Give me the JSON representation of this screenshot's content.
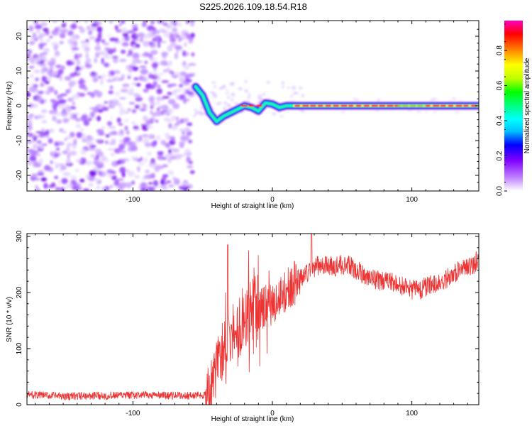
{
  "title": "S225.2026.109.18.54.R18",
  "chart_data": [
    {
      "type": "heatmap",
      "title": "S225.2026.109.18.54.R18",
      "xlabel": "Height of straight line (km)",
      "ylabel": "Frequency (Hz)",
      "xlim": [
        -176,
        148
      ],
      "ylim": [
        -24.5,
        24.5
      ],
      "xticks": [
        -100,
        0,
        100
      ],
      "xtick_labels": [
        "-100",
        "0",
        "100"
      ],
      "yticks": [
        -20,
        -10,
        0,
        10,
        20
      ],
      "ytick_labels": [
        "-20",
        "-10",
        "0",
        "10",
        "20"
      ],
      "colorbar": {
        "label": "Normalized spectral amplitude",
        "range": [
          0,
          0.97
        ],
        "ticks": [
          0,
          0.2,
          0.4,
          0.6,
          0.8
        ],
        "tick_labels": [
          "0.0",
          "0.2",
          "0.4",
          "0.6",
          "0.8"
        ],
        "colormap": [
          "#ffffff",
          "#c080ff",
          "#8000ff",
          "#0000ff",
          "#00c0ff",
          "#00ffff",
          "#00ff80",
          "#00ff00",
          "#c0ff00",
          "#ffff00",
          "#ff8000",
          "#ff0000",
          "#ff00c0"
        ]
      },
      "features": {
        "noise_region_x": [
          -176,
          -59
        ],
        "signal_onset_x": -58,
        "track": [
          {
            "x": -55,
            "f": 5.5
          },
          {
            "x": -50,
            "f": 3.0
          },
          {
            "x": -45,
            "f": -2.0
          },
          {
            "x": -40,
            "f": -4.5
          },
          {
            "x": -35,
            "f": -3.0
          },
          {
            "x": -30,
            "f": -2.0
          },
          {
            "x": -25,
            "f": -1.0
          },
          {
            "x": -20,
            "f": 0.0
          },
          {
            "x": -15,
            "f": -0.5
          },
          {
            "x": -10,
            "f": -1.5
          },
          {
            "x": -5,
            "f": 0.8
          },
          {
            "x": 0,
            "f": 0.5
          },
          {
            "x": 5,
            "f": -0.5
          },
          {
            "x": 10,
            "f": 0.0
          },
          {
            "x": 15,
            "f": 0.0
          },
          {
            "x": 148,
            "f": 0.0
          }
        ]
      }
    },
    {
      "type": "line",
      "xlabel": "Height of straight line (km)",
      "ylabel": "SNR (10 * v/v)",
      "xlim": [
        -176,
        148
      ],
      "ylim": [
        0,
        305
      ],
      "xticks": [
        -100,
        0,
        100
      ],
      "xtick_labels": [
        "-100",
        "0",
        "100"
      ],
      "yticks": [
        0,
        100,
        200,
        300
      ],
      "ytick_labels": [
        "0",
        "100",
        "200",
        "300"
      ],
      "series": [
        {
          "name": "SNR",
          "color": "#ee3333",
          "x": [
            -176,
            -150,
            -120,
            -90,
            -60,
            -50,
            -45,
            -42,
            -40,
            -38,
            -35,
            -30,
            -25,
            -20,
            -15,
            -10,
            -5,
            0,
            5,
            10,
            15,
            20,
            25,
            30,
            35,
            40,
            45,
            50,
            55,
            60,
            65,
            70,
            75,
            80,
            85,
            90,
            95,
            100,
            105,
            110,
            115,
            120,
            125,
            130,
            135,
            140,
            145,
            148
          ],
          "values": [
            18,
            15,
            16,
            17,
            16,
            17,
            25,
            45,
            70,
            90,
            95,
            120,
            135,
            150,
            160,
            170,
            175,
            180,
            190,
            205,
            215,
            225,
            235,
            245,
            250,
            248,
            245,
            250,
            248,
            240,
            232,
            228,
            222,
            220,
            218,
            215,
            210,
            205,
            205,
            210,
            215,
            218,
            225,
            235,
            240,
            245,
            250,
            265
          ]
        }
      ]
    }
  ]
}
